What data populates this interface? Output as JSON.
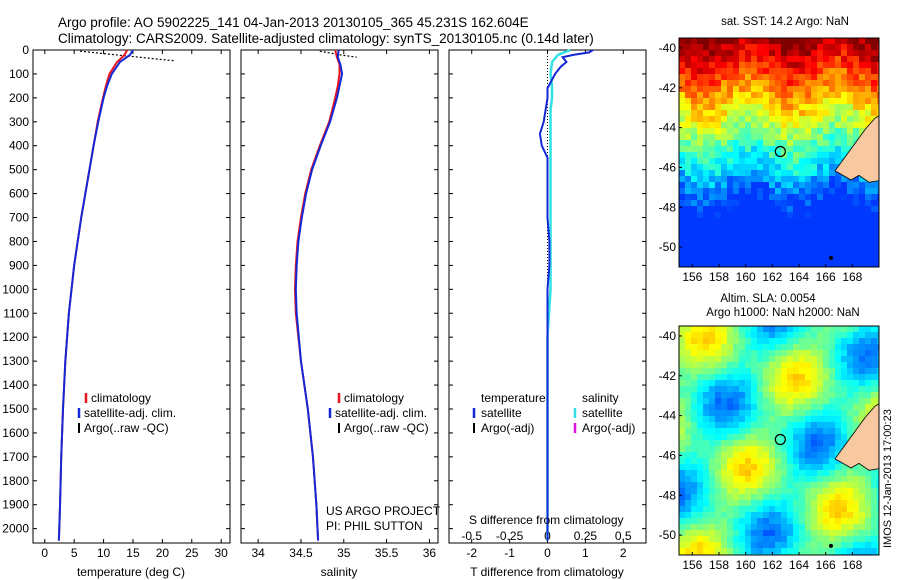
{
  "header": {
    "line1": "Argo profile: AO 5902225_141 04-Jan-2013 20130105_365 45.231S 162.604E",
    "line2": "Climatology: CARS2009. Satellite-adjusted climatology: synTS_20130105.nc (0.14d later)"
  },
  "colors": {
    "climatology": "#e8141c",
    "satellite": "#1428d8",
    "argo": "#000000",
    "cyan": "#33e0e6",
    "magenta": "#e010e0",
    "land": "#f8c8a0"
  },
  "chart_data": [
    {
      "type": "line",
      "id": "temperature",
      "xlabel": "temperature (deg C)",
      "ylabel": "",
      "xlim": [
        -2,
        31.5
      ],
      "ylim": [
        2060,
        0
      ],
      "xticks": [
        0,
        5,
        10,
        15,
        20,
        25,
        30
      ],
      "yticks": [
        0,
        100,
        200,
        300,
        400,
        500,
        600,
        700,
        800,
        900,
        1000,
        1100,
        1200,
        1300,
        1400,
        1500,
        1600,
        1700,
        1800,
        1900,
        2000
      ],
      "legend": [
        "climatology",
        "satellite-adj. clim.",
        "Argo(..raw -QC)"
      ],
      "series": [
        {
          "name": "climatology",
          "depth": [
            0,
            20,
            50,
            100,
            150,
            200,
            300,
            400,
            500,
            700,
            900,
            1100,
            1300,
            1500,
            1700,
            1900,
            2050
          ],
          "values": [
            14.0,
            13.6,
            12.3,
            11.0,
            10.4,
            9.9,
            9.0,
            8.3,
            7.6,
            6.2,
            5.0,
            4.1,
            3.5,
            3.1,
            2.8,
            2.6,
            2.4
          ]
        },
        {
          "name": "satellite-adj. clim.",
          "depth": [
            0,
            20,
            50,
            100,
            150,
            200,
            300,
            400,
            500,
            700,
            900,
            1100,
            1300,
            1500,
            1700,
            1900,
            2050
          ],
          "values": [
            15.0,
            14.5,
            12.8,
            11.4,
            10.6,
            10.0,
            9.1,
            8.3,
            7.6,
            6.2,
            5.0,
            4.1,
            3.5,
            3.1,
            2.8,
            2.6,
            2.4
          ]
        },
        {
          "name": "Argo(..raw -QC)",
          "depth": [
            5,
            10,
            15,
            20,
            25,
            30,
            35,
            40,
            45
          ],
          "values": [
            6,
            8,
            10,
            12,
            14,
            16,
            18,
            20,
            22
          ]
        }
      ]
    },
    {
      "type": "line",
      "id": "salinity",
      "xlabel": "salinity",
      "ylabel": "",
      "xlim": [
        33.8,
        36.1
      ],
      "ylim": [
        2060,
        0
      ],
      "xticks": [
        34,
        34.5,
        35,
        35.5,
        36
      ],
      "legend": [
        "climatology",
        "satellite-adj. clim.",
        "Argo(..raw -QC)"
      ],
      "notes": [
        "US ARGO PROJECT",
        "PI: PHIL SUTTON"
      ],
      "series": [
        {
          "name": "climatology",
          "depth": [
            0,
            30,
            60,
            100,
            150,
            200,
            300,
            400,
            500,
            600,
            700,
            800,
            900,
            1000,
            1100,
            1300,
            1500,
            1700,
            1900,
            2050
          ],
          "values": [
            34.9,
            34.92,
            34.95,
            34.95,
            34.93,
            34.9,
            34.83,
            34.72,
            34.62,
            34.55,
            34.5,
            34.46,
            34.44,
            34.43,
            34.44,
            34.5,
            34.58,
            34.64,
            34.68,
            34.7
          ]
        },
        {
          "name": "satellite-adj. clim.",
          "depth": [
            0,
            30,
            60,
            100,
            150,
            200,
            300,
            400,
            500,
            600,
            700,
            800,
            900,
            1000,
            1100,
            1300,
            1500,
            1700,
            1900,
            2050
          ],
          "values": [
            34.94,
            34.93,
            34.96,
            34.98,
            34.95,
            34.92,
            34.84,
            34.73,
            34.63,
            34.56,
            34.51,
            34.47,
            34.45,
            34.44,
            34.45,
            34.5,
            34.58,
            34.64,
            34.68,
            34.7
          ]
        },
        {
          "name": "Argo(..raw -QC)",
          "depth": [
            5,
            10,
            15,
            20,
            25,
            30
          ],
          "values": [
            34.72,
            34.8,
            34.88,
            34.95,
            35.05,
            35.15
          ]
        }
      ]
    },
    {
      "type": "line",
      "id": "difference",
      "xlabel": "T difference from climatology",
      "xlabel2": "S difference from climatology",
      "xlim": [
        -2.6,
        2.6
      ],
      "ylim": [
        2060,
        0
      ],
      "xticks": [
        -2,
        -1,
        0,
        1,
        2
      ],
      "xticks_s": [
        -0.5,
        -0.25,
        0,
        0.25,
        0.5
      ],
      "legend_left": {
        "title": "temperature",
        "items": [
          "satellite",
          "Argo(-adj)"
        ]
      },
      "legend_right": {
        "title": "salinity",
        "items": [
          "satellite",
          "Argo(-adj)"
        ]
      },
      "series": [
        {
          "name": "temperature satellite",
          "depth": [
            0,
            10,
            20,
            30,
            50,
            70,
            100,
            130,
            160,
            200,
            250,
            300,
            350,
            400,
            450,
            500,
            600,
            700,
            800,
            900,
            1000,
            1200,
            1400,
            1600,
            1800,
            2050
          ],
          "values": [
            1.2,
            1.1,
            0.7,
            0.4,
            0.5,
            0.35,
            0.2,
            0.1,
            0.0,
            0.0,
            -0.05,
            -0.1,
            -0.2,
            -0.15,
            0.0,
            0.0,
            0.0,
            0.0,
            0.05,
            0.05,
            0.0,
            0.0,
            0.0,
            0.0,
            0.0,
            0.0
          ]
        },
        {
          "name": "salinity satellite",
          "depth": [
            0,
            20,
            50,
            100,
            150,
            200,
            250,
            300,
            400,
            500,
            600,
            800,
            1000,
            1200,
            1400,
            1600,
            1800,
            2050
          ],
          "values": [
            0.15,
            0.07,
            0.03,
            0.02,
            0.03,
            0.03,
            0.02,
            0.02,
            0.02,
            0.02,
            0.02,
            0.02,
            0.02,
            0.0,
            0.0,
            0.0,
            0.0,
            0.0
          ]
        }
      ]
    },
    {
      "type": "heatmap",
      "id": "sst-map",
      "title": "sat. SST: 14.2 Argo: NaN",
      "xticks": [
        156,
        158,
        160,
        162,
        164,
        166,
        168
      ],
      "yticks": [
        -40,
        -42,
        -44,
        -46,
        -48,
        -50
      ],
      "xlim": [
        155,
        170
      ],
      "ylim": [
        -51,
        -39.5
      ],
      "argo_position": [
        162.6,
        -45.2
      ]
    },
    {
      "type": "heatmap",
      "id": "sla-map",
      "title": "Altim. SLA: 0.0054",
      "subtitle": "Argo h1000: NaN h2000: NaN",
      "xticks": [
        156,
        158,
        160,
        162,
        164,
        166,
        168
      ],
      "yticks": [
        -40,
        -42,
        -44,
        -46,
        -48,
        -50
      ],
      "xlim": [
        155,
        170
      ],
      "ylim": [
        -51,
        -39.5
      ],
      "argo_position": [
        162.6,
        -45.2
      ]
    }
  ],
  "side_text": "IMOS 12-Jan-2013 17:00:23"
}
